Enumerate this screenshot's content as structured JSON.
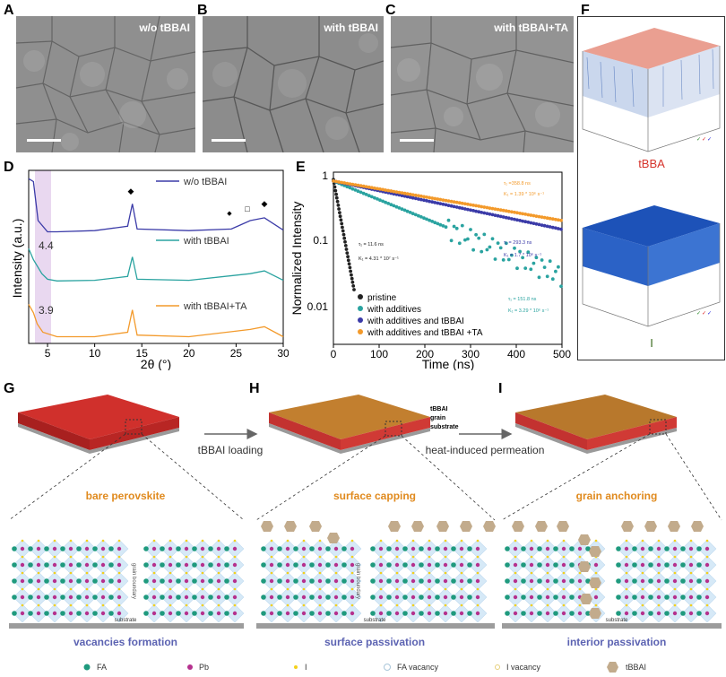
{
  "panels": {
    "A": "A",
    "B": "B",
    "C": "C",
    "D": "D",
    "E": "E",
    "F": "F",
    "G": "G",
    "H": "H",
    "I": "I"
  },
  "sem_labels": [
    "w/o tBBAI",
    "with tBBAI",
    "with tBBAI+TA"
  ],
  "colors": {
    "navy": "#3b3ba8",
    "teal": "#2aa3a0",
    "orange": "#f39a2b",
    "black": "#222222",
    "perov_red": "#c9302c",
    "tbbai_brown": "#b5782a",
    "lilac": "#e9d8f0",
    "blue_text": "#5c63b2",
    "orange_text": "#e08a1e"
  },
  "xrd": {
    "xlabel": "2θ (°)",
    "ylabel": "Intensity (a.u.)",
    "series": [
      {
        "name": "w/o tBBAI",
        "color": "#3b3ba8"
      },
      {
        "name": "with tBBAI",
        "color": "#2aa3a0",
        "annot": "4.4"
      },
      {
        "name": "with tBBAI+TA",
        "color": "#f39a2b",
        "annot": "3.9"
      }
    ],
    "xticks": [
      "5",
      "10",
      "15",
      "20",
      "25",
      "30"
    ]
  },
  "trpl": {
    "xlabel": "Time (ns)",
    "ylabel": "Normalized Intensity",
    "xticks": [
      "0",
      "100",
      "200",
      "300",
      "400",
      "500"
    ],
    "yticks": [
      "1",
      "0.1",
      "0.01"
    ],
    "legend": [
      "pristine",
      "with additives",
      "with additives and tBBAI",
      "with additives and tBBAI +TA"
    ],
    "fits": [
      {
        "tau": "τ₁ = 11.6  ns",
        "k": "K₁ = 4.31 * 10⁷ s⁻¹"
      },
      {
        "tau": "τ₁ = 151.8 ns",
        "k": "K₁ = 3.29 * 10⁶ s⁻¹"
      },
      {
        "tau": "τ₁ = 293.3 ns",
        "k": "K₁ = 1.7 * 10⁶ s⁻¹"
      },
      {
        "tau": "τ₁ =358.8 ns",
        "k": "K₁ = 1.39 * 10⁶ s⁻¹"
      }
    ]
  },
  "tof": {
    "top_label": "tBBA",
    "bottom_label": "I"
  },
  "schematic": {
    "arrow1": "tBBAI loading",
    "arrow2": "heat-induced permeation",
    "layer_labels": [
      "tBBAI",
      "grain",
      "substrate"
    ],
    "titles": [
      "bare perovskite",
      "surface capping",
      "grain anchoring"
    ],
    "captions": [
      "vacancies formation",
      "surface passivation",
      "interior passivation"
    ],
    "substrate": "substrate",
    "grain_boundary": "grain boundary"
  },
  "legend_bottom": [
    "FA",
    "Pb",
    "I",
    "FA vacancy",
    "I vacancy",
    "tBBAI"
  ],
  "chart_data": [
    {
      "type": "line",
      "title": "",
      "xlabel": "2θ (°)",
      "ylabel": "Intensity (a.u.)",
      "xlim": [
        3,
        30
      ],
      "series": [
        {
          "name": "w/o tBBAI",
          "x": [
            3,
            3.5,
            4,
            5,
            6,
            10,
            13.5,
            14,
            14.5,
            20,
            24.5,
            26.5,
            28,
            30
          ],
          "values": [
            2.95,
            2.9,
            2.2,
            2.0,
            2.0,
            2.02,
            2.1,
            2.5,
            2.05,
            2.02,
            2.05,
            2.2,
            2.25,
            2.03
          ]
        },
        {
          "name": "with tBBAI",
          "x": [
            3,
            3.5,
            4.4,
            5,
            6,
            10,
            13.5,
            14,
            14.5,
            20,
            26.5,
            28,
            30
          ],
          "values": [
            1.7,
            1.5,
            1.25,
            1.15,
            1.12,
            1.13,
            1.2,
            1.55,
            1.15,
            1.13,
            1.25,
            1.3,
            1.13
          ]
        },
        {
          "name": "with tBBAI+TA",
          "x": [
            3,
            3.5,
            3.9,
            4.5,
            6,
            10,
            13.5,
            14,
            14.5,
            20,
            26.5,
            28,
            30
          ],
          "values": [
            0.7,
            0.55,
            0.35,
            0.2,
            0.12,
            0.12,
            0.2,
            0.6,
            0.15,
            0.12,
            0.25,
            0.3,
            0.12
          ]
        }
      ],
      "annotations": [
        "4.4",
        "3.9"
      ]
    },
    {
      "type": "scatter",
      "title": "",
      "xlabel": "Time (ns)",
      "ylabel": "Normalized Intensity",
      "xlim": [
        0,
        500
      ],
      "ylim": [
        0.003,
        1.3
      ],
      "yscale": "log",
      "series": [
        {
          "name": "pristine",
          "tau_ns": 11.6
        },
        {
          "name": "with additives",
          "tau_ns": 151.8
        },
        {
          "name": "with additives and tBBAI",
          "tau_ns": 293.3
        },
        {
          "name": "with additives and tBBAI +TA",
          "tau_ns": 358.8
        }
      ]
    }
  ]
}
